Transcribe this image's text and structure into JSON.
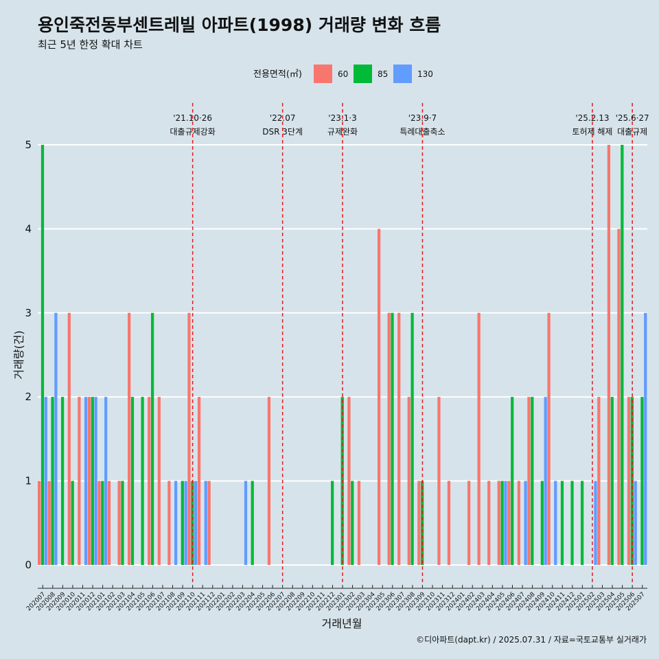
{
  "title": "용인죽전동부센트레빌 아파트(1998) 거래량 변화 흐름",
  "subtitle": "최근 5년 한정 확대 차트",
  "caption": "©디아파트(dapt.kr) / 2025.07.31 / 자료=국토교통부 실거래가",
  "colors": {
    "background": "#d6e3eb",
    "grid": "#ffffff",
    "event_line": "#e31a1c"
  },
  "chart_data": {
    "type": "bar",
    "xlabel": "거래년월",
    "ylabel": "거래량(건)",
    "ylim": [
      -0.2,
      5.3
    ],
    "yticks": [
      0,
      1,
      2,
      3,
      4,
      5
    ],
    "grid": true,
    "legend": {
      "title": "전용면적(㎡)",
      "position": "top"
    },
    "categories": [
      "202007",
      "202008",
      "202009",
      "202010",
      "202011",
      "202012",
      "202101",
      "202102",
      "202103",
      "202104",
      "202105",
      "202106",
      "202107",
      "202108",
      "202109",
      "202110",
      "202111",
      "202112",
      "202201",
      "202202",
      "202203",
      "202204",
      "202205",
      "202206",
      "202207",
      "202208",
      "202209",
      "202210",
      "202211",
      "202212",
      "202301",
      "202302",
      "202303",
      "202304",
      "202305",
      "202306",
      "202307",
      "202308",
      "202309",
      "202310",
      "202311",
      "202312",
      "202401",
      "202402",
      "202403",
      "202404",
      "202405",
      "202406",
      "202407",
      "202408",
      "202409",
      "202410",
      "202411",
      "202412",
      "202501",
      "202502",
      "202503",
      "202504",
      "202505",
      "202506",
      "202507"
    ],
    "series": [
      {
        "name": "60",
        "color": "#f8766d",
        "values": [
          1,
          1,
          0,
          3,
          2,
          2,
          1,
          1,
          1,
          3,
          0,
          2,
          2,
          1,
          0,
          3,
          2,
          1,
          0,
          0,
          0,
          0,
          0,
          2,
          0,
          0,
          0,
          0,
          0,
          0,
          0,
          2,
          1,
          0,
          4,
          3,
          3,
          2,
          1,
          0,
          2,
          1,
          0,
          1,
          3,
          1,
          1,
          1,
          1,
          2,
          0,
          3,
          0,
          0,
          0,
          0,
          2,
          5,
          4,
          2,
          0
        ]
      },
      {
        "name": "85",
        "color": "#00ba38",
        "values": [
          5,
          2,
          2,
          1,
          0,
          2,
          1,
          0,
          1,
          2,
          2,
          3,
          0,
          0,
          1,
          1,
          0,
          0,
          0,
          0,
          0,
          1,
          0,
          0,
          0,
          0,
          0,
          0,
          0,
          1,
          2,
          1,
          0,
          0,
          0,
          3,
          0,
          3,
          1,
          0,
          0,
          0,
          0,
          0,
          0,
          0,
          1,
          2,
          0,
          2,
          1,
          0,
          1,
          1,
          1,
          0,
          0,
          2,
          5,
          2,
          2
        ]
      },
      {
        "name": "130",
        "color": "#619cff",
        "values": [
          2,
          3,
          0,
          0,
          2,
          2,
          2,
          0,
          0,
          0,
          0,
          0,
          0,
          1,
          1,
          1,
          1,
          0,
          0,
          0,
          1,
          0,
          0,
          0,
          0,
          0,
          0,
          0,
          0,
          0,
          0,
          0,
          0,
          0,
          0,
          0,
          0,
          0,
          0,
          0,
          0,
          0,
          0,
          0,
          0,
          0,
          1,
          0,
          1,
          0,
          2,
          1,
          0,
          0,
          0,
          1,
          0,
          0,
          0,
          1,
          3
        ]
      }
    ],
    "events": [
      {
        "category": "202110",
        "date": "'21.10·26",
        "label": "대출규제강화"
      },
      {
        "category": "202207",
        "date": "'22.07",
        "label": "DSR 3단계"
      },
      {
        "category": "202301",
        "date": "'23.1·3",
        "label": "규제완화"
      },
      {
        "category": "202309",
        "date": "'23.9·7",
        "label": "특례대출축소"
      },
      {
        "category": "202502",
        "date": "'25.2.13",
        "label": "토허제 해제"
      },
      {
        "category": "202506",
        "date": "'25.6·27",
        "label": "대출규제"
      }
    ]
  }
}
